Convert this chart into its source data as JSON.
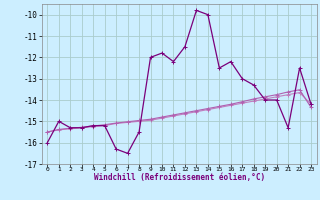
{
  "x": [
    0,
    1,
    2,
    3,
    4,
    5,
    6,
    7,
    8,
    9,
    10,
    11,
    12,
    13,
    14,
    15,
    16,
    17,
    18,
    19,
    20,
    21,
    22,
    23
  ],
  "y_main": [
    -16.0,
    -15.0,
    -15.3,
    -15.3,
    -15.2,
    -15.2,
    -16.3,
    -16.5,
    -15.5,
    -12.0,
    -11.8,
    -12.2,
    -11.5,
    -9.8,
    -10.0,
    -12.5,
    -12.2,
    -13.0,
    -13.3,
    -14.0,
    -14.0,
    -15.3,
    -12.5,
    -14.2
  ],
  "y_ref1": [
    -15.5,
    -15.4,
    -15.35,
    -15.3,
    -15.25,
    -15.2,
    -15.1,
    -15.05,
    -15.0,
    -14.95,
    -14.85,
    -14.75,
    -14.65,
    -14.55,
    -14.45,
    -14.35,
    -14.25,
    -14.15,
    -14.05,
    -13.95,
    -13.85,
    -13.75,
    -13.65,
    -14.2
  ],
  "y_ref2": [
    -15.5,
    -15.38,
    -15.32,
    -15.28,
    -15.22,
    -15.16,
    -15.08,
    -15.02,
    -14.96,
    -14.9,
    -14.8,
    -14.7,
    -14.6,
    -14.5,
    -14.4,
    -14.3,
    -14.2,
    -14.08,
    -13.95,
    -13.85,
    -13.75,
    -13.62,
    -13.52,
    -14.35
  ],
  "color_main": "#7b007b",
  "color_ref1": "#c080c0",
  "color_ref2": "#b060b0",
  "bg_color": "#cceeff",
  "grid_color": "#aacccc",
  "ylim": [
    -17,
    -9.5
  ],
  "xlim": [
    -0.5,
    23.5
  ],
  "yticks": [
    -17,
    -16,
    -15,
    -14,
    -13,
    -12,
    -11,
    -10
  ],
  "xtick_labels": [
    "0",
    "1",
    "2",
    "3",
    "4",
    "5",
    "6",
    "7",
    "8",
    "9",
    "10",
    "11",
    "12",
    "13",
    "14",
    "15",
    "16",
    "17",
    "18",
    "19",
    "20",
    "21",
    "22",
    "23"
  ],
  "xlabel": "Windchill (Refroidissement éolien,°C)",
  "marker": "+"
}
